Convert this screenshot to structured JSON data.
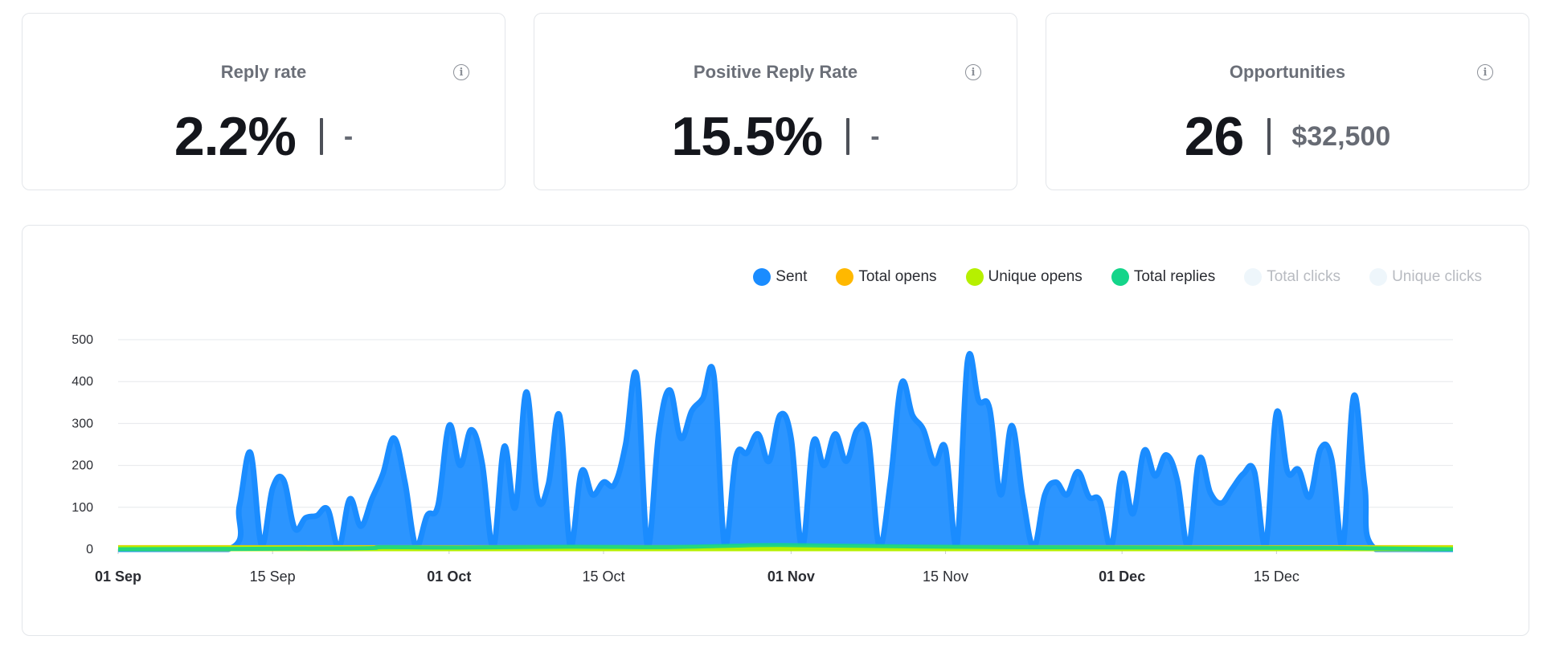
{
  "stats": [
    {
      "title": "Reply rate",
      "value": "2.2%",
      "sub": "-"
    },
    {
      "title": "Positive Reply Rate",
      "value": "15.5%",
      "sub": "-"
    },
    {
      "title": "Opportunities",
      "value": "26",
      "sub": "$32,500"
    }
  ],
  "info_icon": "info-circle-icon",
  "legend": [
    {
      "name": "Sent",
      "color": "#1a8cff",
      "active": true
    },
    {
      "name": "Total opens",
      "color": "#ffb800",
      "active": true
    },
    {
      "name": "Unique opens",
      "color": "#b6f000",
      "active": true
    },
    {
      "name": "Total replies",
      "color": "#14d58a",
      "active": true
    },
    {
      "name": "Total clicks",
      "color": "#eef6fb",
      "active": false
    },
    {
      "name": "Unique clicks",
      "color": "#eef6fb",
      "active": false
    }
  ],
  "chart_data": {
    "type": "area",
    "x_start": "2023-09-01",
    "x_end": "2023-12-31",
    "y_ticks": [
      0,
      100,
      200,
      300,
      400,
      500
    ],
    "ylim": [
      0,
      500
    ],
    "grid": true,
    "legend_placement": "top-right",
    "x_ticks": [
      {
        "label": "01 Sep",
        "date": "2023-09-01",
        "major": true
      },
      {
        "label": "15 Sep",
        "date": "2023-09-15",
        "major": false
      },
      {
        "label": "01 Oct",
        "date": "2023-10-01",
        "major": true
      },
      {
        "label": "15 Oct",
        "date": "2023-10-15",
        "major": false
      },
      {
        "label": "01 Nov",
        "date": "2023-11-01",
        "major": true
      },
      {
        "label": "15 Nov",
        "date": "2023-11-15",
        "major": false
      },
      {
        "label": "01 Dec",
        "date": "2023-12-01",
        "major": true
      },
      {
        "label": "15 Dec",
        "date": "2023-12-15",
        "major": false
      }
    ],
    "series": [
      {
        "name": "Sent",
        "color": "#1a8cff",
        "points": [
          [
            "2023-09-01",
            0
          ],
          [
            "2023-09-11",
            0
          ],
          [
            "2023-09-12",
            105
          ],
          [
            "2023-09-13",
            230
          ],
          [
            "2023-09-14",
            10
          ],
          [
            "2023-09-15",
            145
          ],
          [
            "2023-09-16",
            165
          ],
          [
            "2023-09-17",
            50
          ],
          [
            "2023-09-18",
            75
          ],
          [
            "2023-09-19",
            80
          ],
          [
            "2023-09-20",
            95
          ],
          [
            "2023-09-21",
            5
          ],
          [
            "2023-09-22",
            120
          ],
          [
            "2023-09-23",
            55
          ],
          [
            "2023-09-24",
            120
          ],
          [
            "2023-09-25",
            180
          ],
          [
            "2023-09-26",
            265
          ],
          [
            "2023-09-27",
            160
          ],
          [
            "2023-09-28",
            5
          ],
          [
            "2023-09-29",
            80
          ],
          [
            "2023-09-30",
            105
          ],
          [
            "2023-10-01",
            295
          ],
          [
            "2023-10-02",
            200
          ],
          [
            "2023-10-03",
            285
          ],
          [
            "2023-10-04",
            205
          ],
          [
            "2023-10-05",
            5
          ],
          [
            "2023-10-06",
            245
          ],
          [
            "2023-10-07",
            100
          ],
          [
            "2023-10-08",
            375
          ],
          [
            "2023-10-09",
            125
          ],
          [
            "2023-10-10",
            155
          ],
          [
            "2023-10-11",
            320
          ],
          [
            "2023-10-12",
            5
          ],
          [
            "2023-10-13",
            185
          ],
          [
            "2023-10-14",
            130
          ],
          [
            "2023-10-15",
            160
          ],
          [
            "2023-10-16",
            155
          ],
          [
            "2023-10-17",
            250
          ],
          [
            "2023-10-18",
            415
          ],
          [
            "2023-10-19",
            5
          ],
          [
            "2023-10-20",
            275
          ],
          [
            "2023-10-21",
            380
          ],
          [
            "2023-10-22",
            265
          ],
          [
            "2023-10-23",
            330
          ],
          [
            "2023-10-24",
            360
          ],
          [
            "2023-10-25",
            415
          ],
          [
            "2023-10-26",
            5
          ],
          [
            "2023-10-27",
            220
          ],
          [
            "2023-10-28",
            230
          ],
          [
            "2023-10-29",
            275
          ],
          [
            "2023-10-30",
            210
          ],
          [
            "2023-10-31",
            320
          ],
          [
            "2023-11-01",
            265
          ],
          [
            "2023-11-02",
            5
          ],
          [
            "2023-11-03",
            255
          ],
          [
            "2023-11-04",
            200
          ],
          [
            "2023-11-05",
            275
          ],
          [
            "2023-11-06",
            210
          ],
          [
            "2023-11-07",
            285
          ],
          [
            "2023-11-08",
            265
          ],
          [
            "2023-11-09",
            5
          ],
          [
            "2023-11-10",
            160
          ],
          [
            "2023-11-11",
            395
          ],
          [
            "2023-11-12",
            320
          ],
          [
            "2023-11-13",
            285
          ],
          [
            "2023-11-14",
            205
          ],
          [
            "2023-11-15",
            240
          ],
          [
            "2023-11-16",
            5
          ],
          [
            "2023-11-17",
            450
          ],
          [
            "2023-11-18",
            355
          ],
          [
            "2023-11-19",
            335
          ],
          [
            "2023-11-20",
            130
          ],
          [
            "2023-11-21",
            295
          ],
          [
            "2023-11-22",
            125
          ],
          [
            "2023-11-23",
            5
          ],
          [
            "2023-11-24",
            130
          ],
          [
            "2023-11-25",
            160
          ],
          [
            "2023-11-26",
            130
          ],
          [
            "2023-11-27",
            185
          ],
          [
            "2023-11-28",
            125
          ],
          [
            "2023-11-29",
            115
          ],
          [
            "2023-11-30",
            5
          ],
          [
            "2023-12-01",
            180
          ],
          [
            "2023-12-02",
            85
          ],
          [
            "2023-12-03",
            235
          ],
          [
            "2023-12-04",
            175
          ],
          [
            "2023-12-05",
            225
          ],
          [
            "2023-12-06",
            165
          ],
          [
            "2023-12-07",
            5
          ],
          [
            "2023-12-08",
            215
          ],
          [
            "2023-12-09",
            135
          ],
          [
            "2023-12-10",
            110
          ],
          [
            "2023-12-11",
            145
          ],
          [
            "2023-12-12",
            180
          ],
          [
            "2023-12-13",
            185
          ],
          [
            "2023-12-14",
            5
          ],
          [
            "2023-12-15",
            325
          ],
          [
            "2023-12-16",
            185
          ],
          [
            "2023-12-17",
            190
          ],
          [
            "2023-12-18",
            125
          ],
          [
            "2023-12-19",
            240
          ],
          [
            "2023-12-20",
            215
          ],
          [
            "2023-12-21",
            5
          ],
          [
            "2023-12-22",
            365
          ],
          [
            "2023-12-23",
            150
          ],
          [
            "2023-12-24",
            0
          ],
          [
            "2023-12-31",
            0
          ]
        ]
      },
      {
        "name": "Total opens",
        "color": "#ffb800",
        "points": [
          [
            "2023-09-01",
            3
          ],
          [
            "2023-12-31",
            3
          ]
        ]
      },
      {
        "name": "Unique opens",
        "color": "#b6f000",
        "points": [
          [
            "2023-09-01",
            2
          ],
          [
            "2023-12-31",
            2
          ]
        ]
      },
      {
        "name": "Total replies",
        "color": "#14d58a",
        "points": [
          [
            "2023-09-01",
            0
          ],
          [
            "2023-09-22",
            2
          ],
          [
            "2023-09-25",
            5
          ],
          [
            "2023-10-02",
            4
          ],
          [
            "2023-10-12",
            6
          ],
          [
            "2023-10-20",
            5
          ],
          [
            "2023-10-26",
            8
          ],
          [
            "2023-10-31",
            10
          ],
          [
            "2023-11-11",
            7
          ],
          [
            "2023-11-20",
            5
          ],
          [
            "2023-12-05",
            4
          ],
          [
            "2023-12-20",
            3
          ],
          [
            "2023-12-31",
            0
          ]
        ]
      }
    ]
  }
}
